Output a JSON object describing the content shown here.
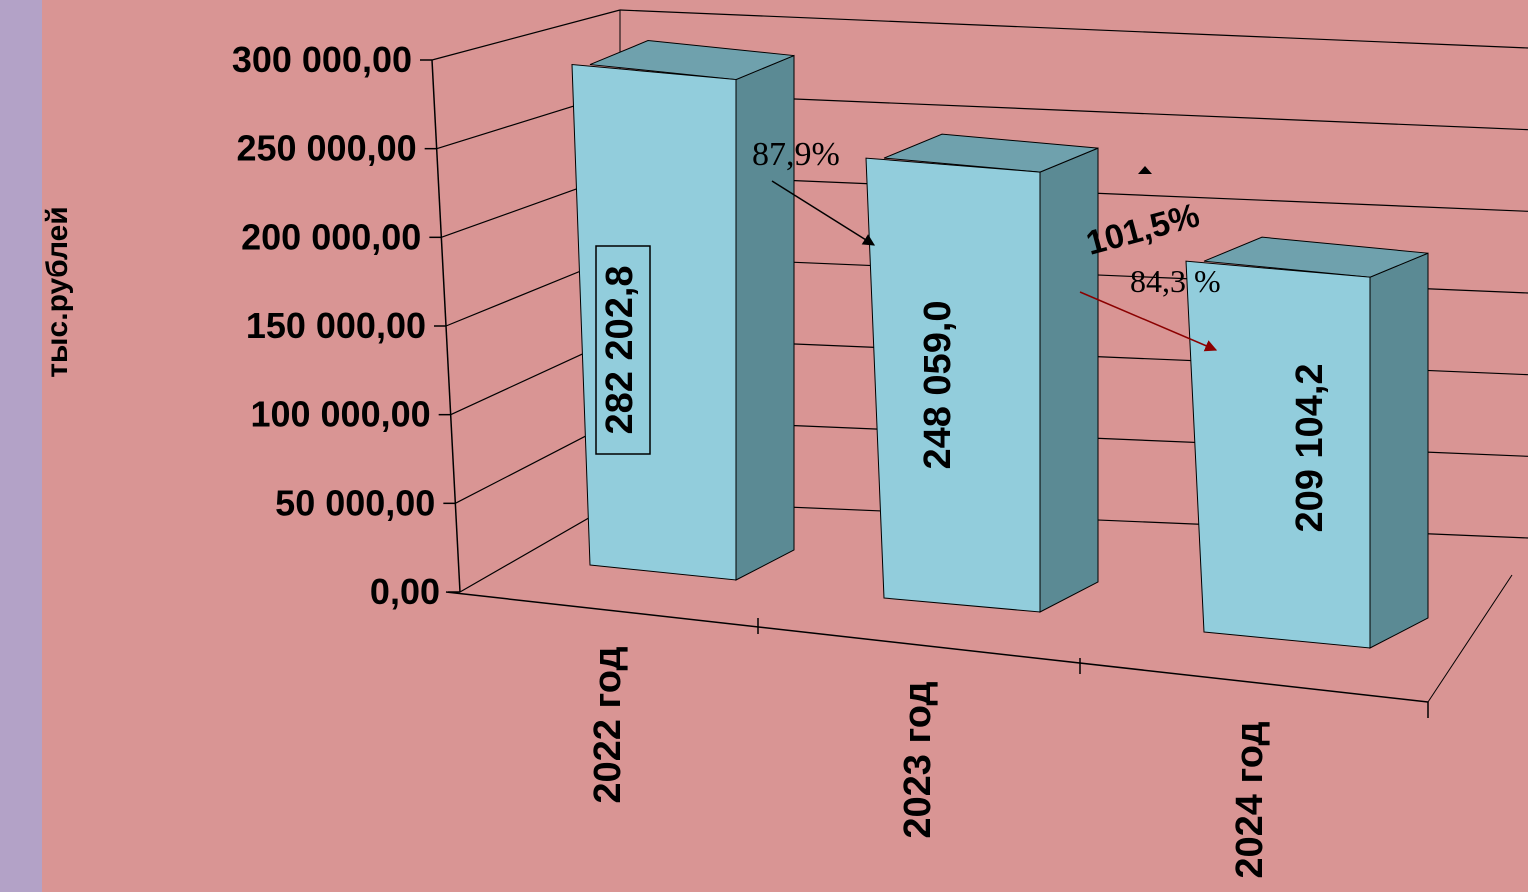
{
  "chart_data": {
    "type": "bar",
    "title": "",
    "xlabel": "",
    "ylabel": "тыс.рублей",
    "ylim": [
      0,
      300000
    ],
    "y_ticks": [
      "0,00",
      "50 000,00",
      "100 000,00",
      "150 000,00",
      "200 000,00",
      "250 000,00",
      "300 000,00"
    ],
    "y_tick_values": [
      0,
      50000,
      100000,
      150000,
      200000,
      250000,
      300000
    ],
    "categories": [
      "2022 год",
      "2023 год",
      "2024 год"
    ],
    "values": [
      282202.8,
      248059.0,
      209104.2
    ],
    "data_labels": [
      "282 202,8",
      "248 059,0",
      "209 104,2"
    ],
    "grid": true,
    "annotations": {
      "change_2023": "87,9%",
      "change_2024": "84,3 %",
      "extra": "101,5%"
    },
    "colors": {
      "background": "#d99594",
      "strip": "#b3a2c7",
      "bar_front": "#92cddc",
      "bar_side": "#5b8a94",
      "bar_top": "#6fa1ad",
      "arrow_dark": "#8b0000"
    }
  }
}
